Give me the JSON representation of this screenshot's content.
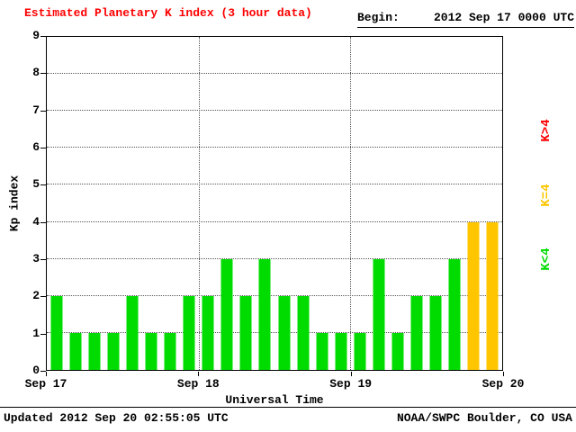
{
  "title": "Estimated Planetary K index (3 hour data)",
  "begin": {
    "label": "Begin:",
    "value": "2012 Sep 17 0000 UTC"
  },
  "footer": {
    "updated": "Updated 2012 Sep 20 02:55:05 UTC",
    "credit": "NOAA/SWPC Boulder, CO USA"
  },
  "colors": {
    "title": "#ff0000",
    "bar_low": "#00dc00",
    "bar_mid": "#ffc600",
    "bar_high": "#ff0000",
    "grid": "#555555",
    "text": "#000000"
  },
  "legend": [
    {
      "id": "legend-k-gt-4",
      "label": "K>4",
      "color": "#ff0000"
    },
    {
      "id": "legend-k-eq-4",
      "label": "K=4",
      "color": "#ffc600"
    },
    {
      "id": "legend-k-lt-4",
      "label": "K<4",
      "color": "#00dc00"
    }
  ],
  "chart_data": {
    "type": "bar",
    "title": "Estimated Planetary K index (3 hour data)",
    "xlabel": "Universal Time",
    "ylabel": "Kp index",
    "ylim": [
      0,
      9
    ],
    "yticks": [
      0,
      1,
      2,
      3,
      4,
      5,
      6,
      7,
      8,
      9
    ],
    "x_tick_labels": [
      "Sep 17",
      "Sep 18",
      "Sep 19",
      "Sep 20"
    ],
    "hours_per_bar": 3,
    "values": [
      2,
      1,
      1,
      1,
      2,
      1,
      1,
      2,
      2,
      3,
      2,
      3,
      2,
      2,
      1,
      1,
      1,
      3,
      1,
      2,
      2,
      3,
      4,
      4
    ],
    "color_rule": {
      "lt4": "#00dc00",
      "eq4": "#ffc600",
      "gt4": "#ff0000"
    },
    "grid": "dotted horizontal at each integer, dotted vertical at day boundaries",
    "legend_position": "right, rotated"
  }
}
